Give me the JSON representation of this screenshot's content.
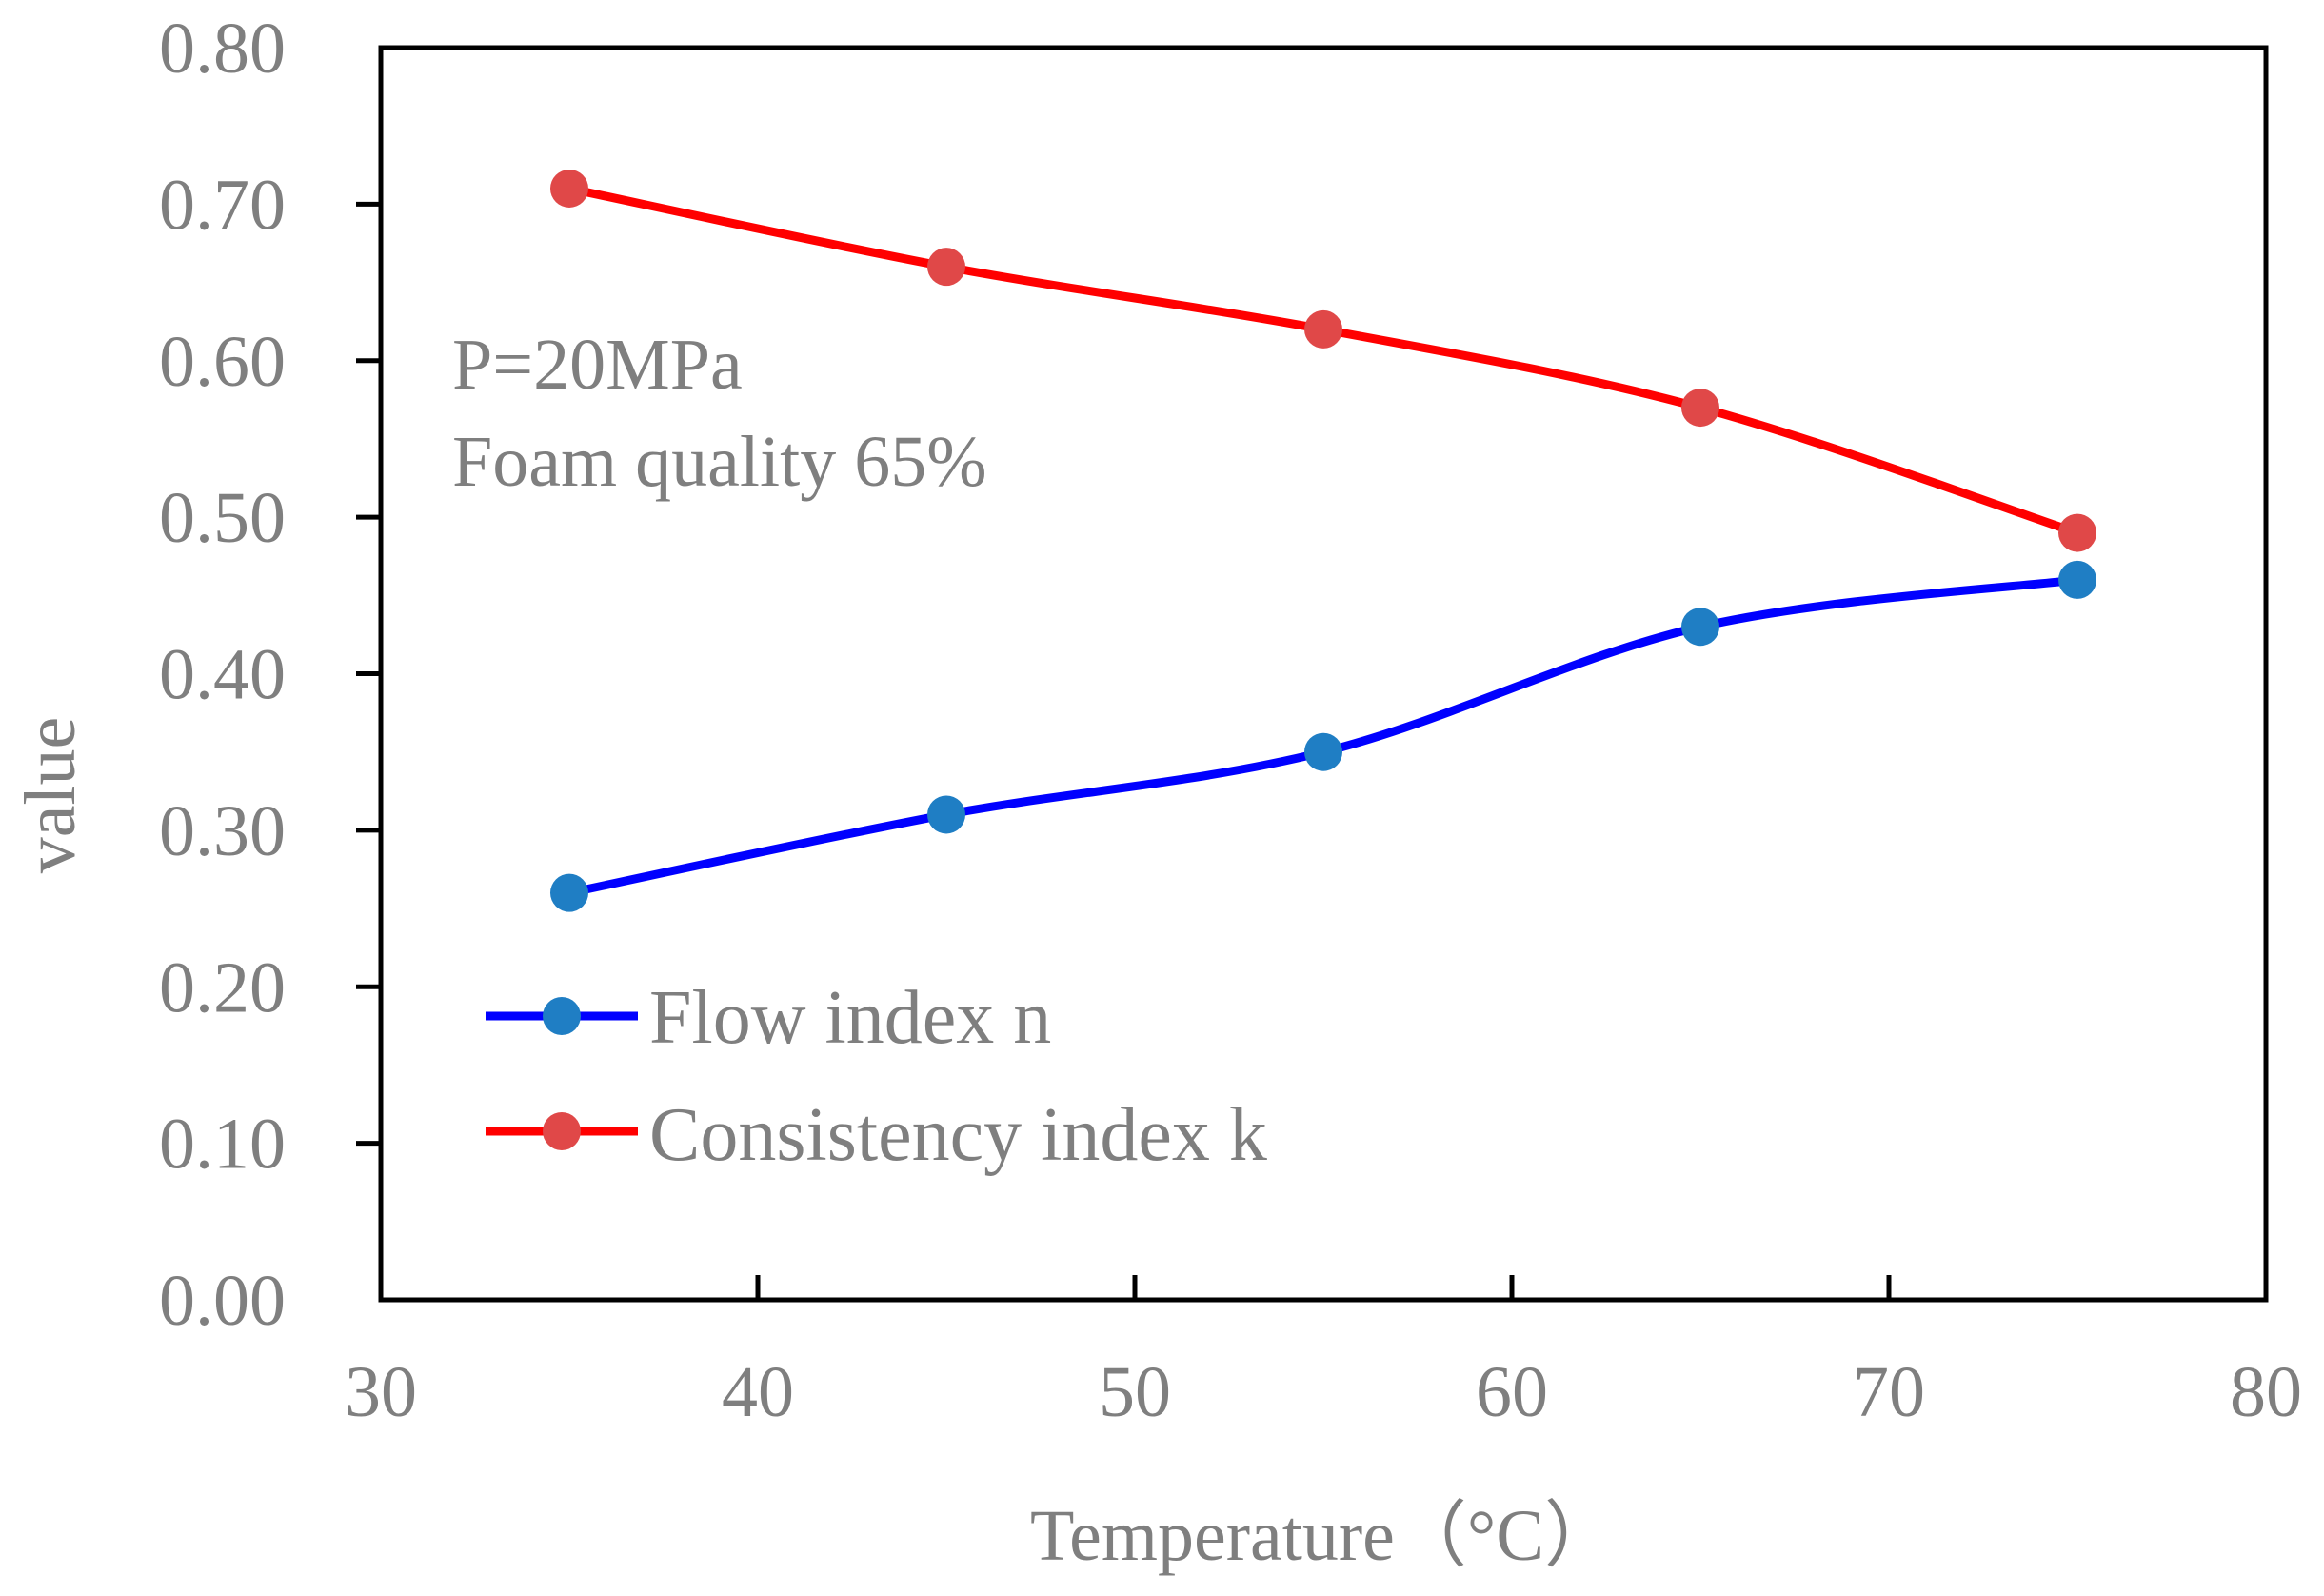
{
  "chart_data": {
    "type": "line",
    "title": "",
    "xlabel": "Temperature（°C）",
    "ylabel": "value",
    "xlim": [
      30,
      80
    ],
    "ylim": [
      0.0,
      0.8
    ],
    "x_ticks": [
      "30",
      "40",
      "50",
      "60",
      "70",
      "80"
    ],
    "y_ticks": [
      "0.00",
      "0.10",
      "0.20",
      "0.30",
      "0.40",
      "0.50",
      "0.60",
      "0.70",
      "0.80"
    ],
    "x": [
      35,
      45,
      55,
      65,
      75
    ],
    "series": [
      {
        "name": "Flow index n",
        "values": [
          0.26,
          0.31,
          0.35,
          0.43,
          0.46
        ],
        "line_color": "#0000ff",
        "marker_color": "#1f7ec4"
      },
      {
        "name": "Consistency index k",
        "values": [
          0.71,
          0.66,
          0.62,
          0.57,
          0.49
        ],
        "line_color": "#ff0000",
        "marker_color": "#e04848"
      }
    ],
    "annotations": [
      "P=20MPa",
      "Foam quality  65%"
    ],
    "legend_position": "bottom-left",
    "grid": false
  }
}
